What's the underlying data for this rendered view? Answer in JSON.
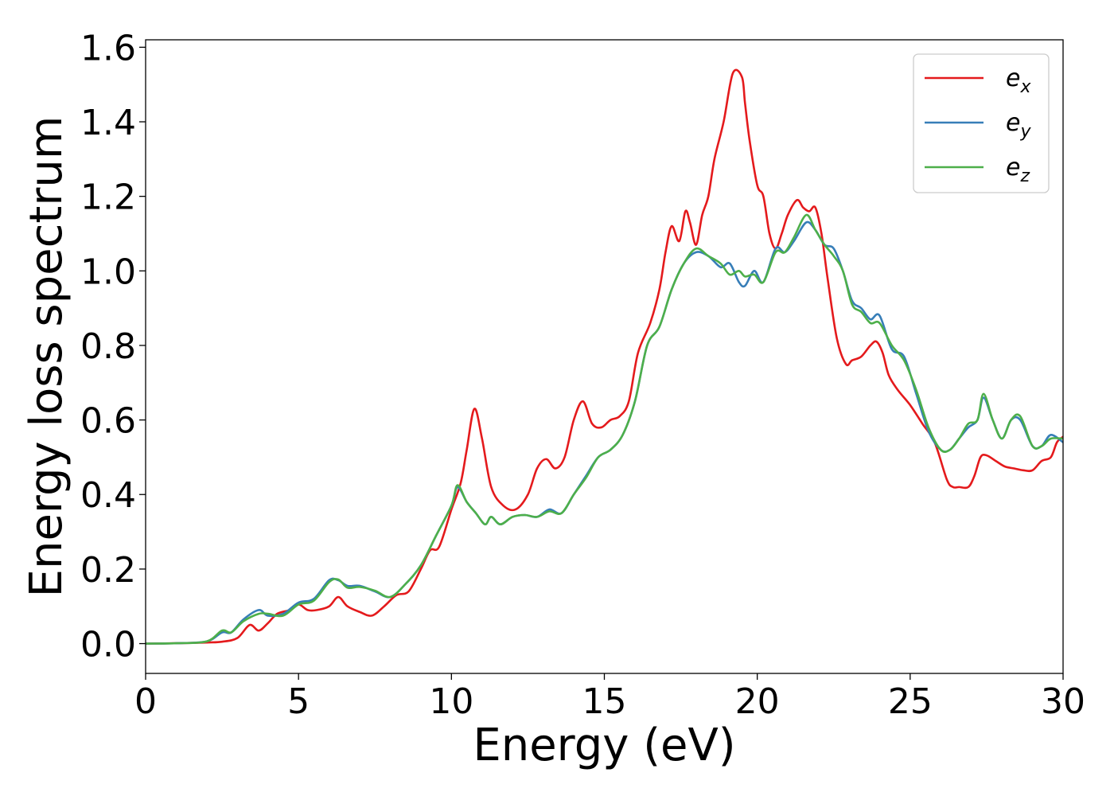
{
  "chart_data": {
    "type": "line",
    "title": "",
    "xlabel": "Energy (eV)",
    "ylabel": "Energy loss spectrum",
    "xlim": [
      0,
      30
    ],
    "ylim": [
      -0.08,
      1.62
    ],
    "xticks": [
      0,
      5,
      10,
      15,
      20,
      25,
      30
    ],
    "xtick_labels": [
      "0",
      "5",
      "10",
      "15",
      "20",
      "25",
      "30"
    ],
    "yticks": [
      0.0,
      0.2,
      0.4,
      0.6,
      0.8,
      1.0,
      1.2,
      1.4,
      1.6
    ],
    "ytick_labels": [
      "0.0",
      "0.2",
      "0.4",
      "0.6",
      "0.8",
      "1.0",
      "1.2",
      "1.4",
      "1.6"
    ],
    "grid": false,
    "legend_position": "top-right",
    "series": [
      {
        "name": "e_x",
        "label_base": "e",
        "label_sub": "x",
        "color": "#e41a1c",
        "x": [
          0,
          1,
          2,
          2.5,
          3,
          3.4,
          3.7,
          4,
          4.3,
          4.7,
          5,
          5.3,
          5.6,
          6,
          6.3,
          6.6,
          7,
          7.4,
          7.8,
          8.2,
          8.6,
          9,
          9.3,
          9.6,
          10,
          10.3,
          10.5,
          10.75,
          11,
          11.3,
          11.7,
          12.1,
          12.5,
          12.8,
          13.1,
          13.4,
          13.7,
          14,
          14.3,
          14.6,
          14.9,
          15.2,
          15.5,
          15.8,
          16.1,
          16.5,
          16.8,
          17.0,
          17.2,
          17.45,
          17.65,
          17.8,
          18.0,
          18.2,
          18.4,
          18.6,
          18.9,
          19.2,
          19.5,
          19.6,
          19.75,
          20.0,
          20.2,
          20.4,
          20.6,
          20.8,
          21.0,
          21.3,
          21.5,
          21.7,
          21.9,
          22.1,
          22.3,
          22.6,
          22.9,
          23.1,
          23.4,
          23.7,
          23.9,
          24.1,
          24.3,
          24.6,
          25.0,
          25.4,
          25.8,
          26.2,
          26.4,
          26.6,
          26.9,
          27.1,
          27.3,
          27.5,
          27.8,
          28.1,
          28.4,
          28.7,
          29.0,
          29.3,
          29.6,
          29.8,
          30.0
        ],
        "y": [
          0.0,
          0.001,
          0.003,
          0.005,
          0.015,
          0.05,
          0.035,
          0.055,
          0.08,
          0.09,
          0.105,
          0.09,
          0.09,
          0.1,
          0.125,
          0.1,
          0.085,
          0.075,
          0.1,
          0.13,
          0.14,
          0.2,
          0.25,
          0.26,
          0.36,
          0.43,
          0.52,
          0.63,
          0.55,
          0.42,
          0.37,
          0.36,
          0.4,
          0.47,
          0.495,
          0.47,
          0.5,
          0.6,
          0.65,
          0.59,
          0.58,
          0.6,
          0.61,
          0.65,
          0.78,
          0.86,
          0.95,
          1.05,
          1.12,
          1.08,
          1.16,
          1.13,
          1.07,
          1.15,
          1.2,
          1.3,
          1.4,
          1.53,
          1.52,
          1.45,
          1.35,
          1.23,
          1.2,
          1.1,
          1.06,
          1.1,
          1.15,
          1.19,
          1.17,
          1.16,
          1.17,
          1.1,
          0.98,
          0.82,
          0.75,
          0.76,
          0.77,
          0.8,
          0.81,
          0.78,
          0.72,
          0.68,
          0.64,
          0.59,
          0.54,
          0.44,
          0.42,
          0.42,
          0.42,
          0.45,
          0.5,
          0.505,
          0.49,
          0.475,
          0.47,
          0.465,
          0.465,
          0.49,
          0.5,
          0.54,
          0.555
        ]
      },
      {
        "name": "e_y",
        "label_base": "e",
        "label_sub": "y",
        "color": "#377eb8",
        "x": [
          0,
          1,
          2,
          2.5,
          2.8,
          3.2,
          3.7,
          4,
          4.5,
          5,
          5.5,
          6,
          6.3,
          6.6,
          7,
          7.5,
          8,
          8.5,
          9,
          9.5,
          10,
          10.2,
          10.5,
          10.8,
          11.1,
          11.3,
          11.6,
          12,
          12.4,
          12.8,
          13.2,
          13.6,
          14,
          14.4,
          14.8,
          15.2,
          15.6,
          16,
          16.4,
          16.8,
          17.2,
          17.6,
          18,
          18.4,
          18.8,
          19.1,
          19.4,
          19.6,
          19.9,
          20.2,
          20.6,
          20.9,
          21.2,
          21.6,
          21.9,
          22.2,
          22.5,
          22.8,
          23.1,
          23.4,
          23.7,
          24.0,
          24.4,
          24.8,
          25.2,
          25.6,
          26.0,
          26.3,
          26.6,
          26.9,
          27.2,
          27.4,
          27.7,
          28.0,
          28.3,
          28.6,
          29.0,
          29.3,
          29.6,
          30.0
        ],
        "y": [
          0.0,
          0.001,
          0.006,
          0.03,
          0.03,
          0.065,
          0.09,
          0.075,
          0.08,
          0.11,
          0.12,
          0.17,
          0.17,
          0.155,
          0.155,
          0.14,
          0.125,
          0.16,
          0.21,
          0.29,
          0.37,
          0.42,
          0.38,
          0.35,
          0.32,
          0.34,
          0.32,
          0.34,
          0.345,
          0.34,
          0.36,
          0.35,
          0.4,
          0.45,
          0.5,
          0.52,
          0.56,
          0.65,
          0.8,
          0.85,
          0.95,
          1.02,
          1.05,
          1.04,
          1.01,
          1.02,
          0.97,
          0.96,
          1.0,
          0.97,
          1.06,
          1.05,
          1.08,
          1.13,
          1.11,
          1.07,
          1.06,
          1.0,
          0.92,
          0.9,
          0.87,
          0.88,
          0.79,
          0.77,
          0.67,
          0.57,
          0.52,
          0.52,
          0.55,
          0.58,
          0.6,
          0.66,
          0.6,
          0.55,
          0.6,
          0.6,
          0.53,
          0.53,
          0.56,
          0.54
        ]
      },
      {
        "name": "e_z",
        "label_base": "e",
        "label_sub": "z",
        "color": "#4daf4a",
        "x": [
          0,
          1,
          2,
          2.5,
          2.8,
          3.2,
          3.7,
          4,
          4.5,
          5,
          5.5,
          6,
          6.3,
          6.6,
          7,
          7.5,
          8,
          8.5,
          9,
          9.5,
          10,
          10.2,
          10.5,
          10.8,
          11.1,
          11.3,
          11.6,
          12,
          12.4,
          12.8,
          13.2,
          13.6,
          14,
          14.4,
          14.8,
          15.2,
          15.6,
          16,
          16.4,
          16.8,
          17.2,
          17.6,
          18,
          18.4,
          18.8,
          19.1,
          19.4,
          19.6,
          19.9,
          20.2,
          20.6,
          20.9,
          21.2,
          21.6,
          21.9,
          22.2,
          22.5,
          22.8,
          23.1,
          23.4,
          23.7,
          24.0,
          24.4,
          24.8,
          25.2,
          25.6,
          26.0,
          26.3,
          26.6,
          26.9,
          27.2,
          27.4,
          27.7,
          28.0,
          28.3,
          28.6,
          29.0,
          29.3,
          29.6,
          30.0
        ],
        "y": [
          0.0,
          0.001,
          0.006,
          0.035,
          0.03,
          0.06,
          0.08,
          0.08,
          0.075,
          0.105,
          0.115,
          0.165,
          0.172,
          0.15,
          0.152,
          0.142,
          0.125,
          0.16,
          0.21,
          0.29,
          0.37,
          0.425,
          0.38,
          0.35,
          0.32,
          0.34,
          0.32,
          0.34,
          0.345,
          0.34,
          0.355,
          0.35,
          0.4,
          0.445,
          0.5,
          0.52,
          0.56,
          0.65,
          0.8,
          0.85,
          0.95,
          1.02,
          1.06,
          1.04,
          1.02,
          0.99,
          1.0,
          0.985,
          0.99,
          0.97,
          1.05,
          1.05,
          1.09,
          1.15,
          1.11,
          1.07,
          1.04,
          1.0,
          0.91,
          0.89,
          0.86,
          0.86,
          0.8,
          0.76,
          0.68,
          0.58,
          0.52,
          0.52,
          0.55,
          0.59,
          0.6,
          0.67,
          0.6,
          0.55,
          0.6,
          0.61,
          0.53,
          0.53,
          0.55,
          0.55
        ]
      }
    ]
  }
}
